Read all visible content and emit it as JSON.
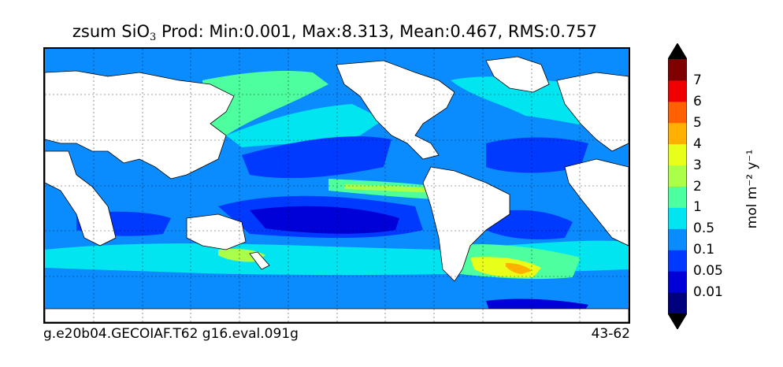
{
  "title": {
    "prefix": "zsum SiO",
    "subscript": "3",
    "suffix": " Prod: Min:0.001, Max:8.313, Mean:0.467, RMS:0.757"
  },
  "footer": {
    "case_name": "g.e20b04.GECOIAF.T62 g16.eval.091g",
    "years": "43-62"
  },
  "colorbar": {
    "unit_label": "mol m⁻² y⁻¹",
    "levels": [
      "0.01",
      "0.05",
      "0.1",
      "0.5",
      "1",
      "2",
      "3",
      "4",
      "5",
      "6",
      "7"
    ],
    "colors": [
      "#00007f",
      "#0000d8",
      "#0039ff",
      "#0a8cff",
      "#00e5f0",
      "#4dff9e",
      "#aaff48",
      "#e8ff1a",
      "#ffb000",
      "#ff6000",
      "#f00000",
      "#7f0000"
    ],
    "extend_min_color": "#000000",
    "extend_max_color": "#000000"
  },
  "map": {
    "land_color": "#ffffff",
    "coast_color": "#000000",
    "grid": true
  }
}
